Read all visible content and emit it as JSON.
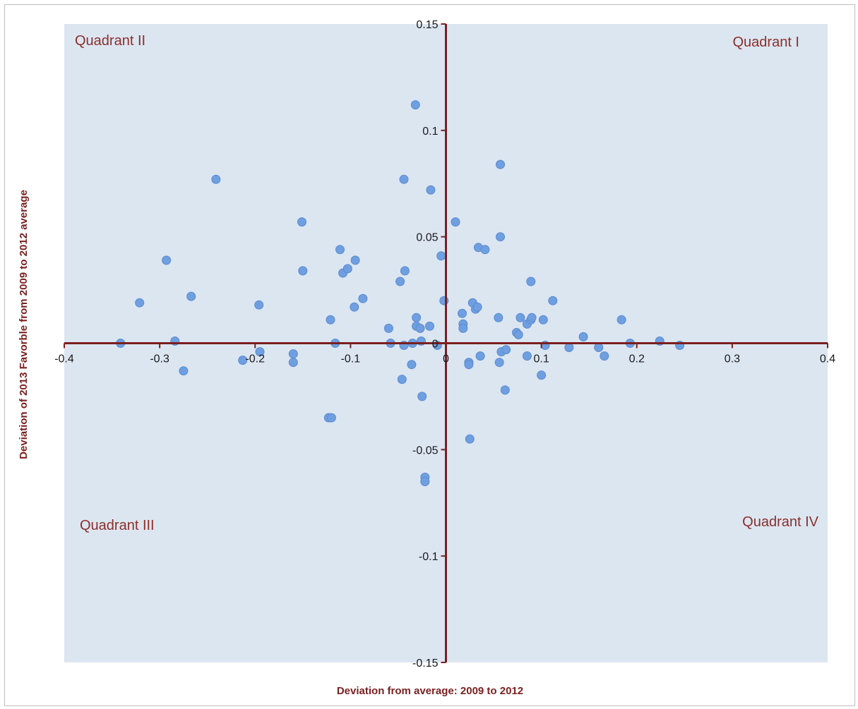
{
  "chart_data": {
    "type": "scatter",
    "xlabel": "Deviation from average: 2009 to 2012",
    "ylabel": "Deviation of 2013 Favorble from 2009 to 2012 average",
    "xlim": [
      -0.4,
      0.4
    ],
    "ylim": [
      -0.15,
      0.15
    ],
    "x_ticks": [
      "-0.4",
      "-0.3",
      "-0.2",
      "-0.1",
      "0",
      "0.1",
      "0.2",
      "0.3",
      "0.4"
    ],
    "y_ticks": [
      "0.15",
      "0.1",
      "0.05",
      "0",
      "-0.05",
      "-0.1",
      "-0.15"
    ],
    "grid": false,
    "legend": "none",
    "plot_background": "#dce6f1",
    "axis_color": "#7b1f1f",
    "marker_color": "#6f9fe0",
    "quadrant_labels": {
      "q1": "Quadrant I",
      "q2": "Quadrant II",
      "q3": "Quadrant III",
      "q4": "Quadrant IV"
    },
    "points": [
      [
        -0.341,
        0.0
      ],
      [
        -0.321,
        0.019
      ],
      [
        -0.293,
        0.039
      ],
      [
        -0.284,
        0.001
      ],
      [
        -0.275,
        -0.013
      ],
      [
        -0.267,
        0.022
      ],
      [
        -0.241,
        0.077
      ],
      [
        -0.213,
        -0.008
      ],
      [
        -0.196,
        0.018
      ],
      [
        -0.195,
        -0.004
      ],
      [
        -0.16,
        -0.005
      ],
      [
        -0.16,
        -0.009
      ],
      [
        -0.151,
        0.057
      ],
      [
        -0.15,
        0.034
      ],
      [
        -0.123,
        -0.035
      ],
      [
        -0.12,
        -0.035
      ],
      [
        -0.121,
        0.011
      ],
      [
        -0.116,
        0.0
      ],
      [
        -0.111,
        0.044
      ],
      [
        -0.108,
        0.033
      ],
      [
        -0.103,
        0.035
      ],
      [
        -0.096,
        0.017
      ],
      [
        -0.095,
        0.039
      ],
      [
        -0.087,
        0.021
      ],
      [
        -0.06,
        0.007
      ],
      [
        -0.058,
        0.0
      ],
      [
        -0.048,
        0.029
      ],
      [
        -0.046,
        -0.017
      ],
      [
        -0.044,
        0.077
      ],
      [
        -0.043,
        0.034
      ],
      [
        -0.044,
        -0.001
      ],
      [
        -0.036,
        -0.01
      ],
      [
        -0.035,
        0.0
      ],
      [
        -0.032,
        0.112
      ],
      [
        -0.031,
        0.012
      ],
      [
        -0.031,
        0.008
      ],
      [
        -0.027,
        0.007
      ],
      [
        -0.026,
        0.001
      ],
      [
        -0.025,
        -0.025
      ],
      [
        -0.022,
        -0.063
      ],
      [
        -0.022,
        -0.065
      ],
      [
        -0.017,
        0.008
      ],
      [
        -0.016,
        0.072
      ],
      [
        -0.009,
        -0.001
      ],
      [
        -0.005,
        0.041
      ],
      [
        -0.002,
        0.02
      ],
      [
        0.01,
        0.057
      ],
      [
        0.017,
        0.014
      ],
      [
        0.018,
        0.009
      ],
      [
        0.018,
        0.007
      ],
      [
        0.024,
        -0.009
      ],
      [
        0.024,
        -0.01
      ],
      [
        0.025,
        -0.045
      ],
      [
        0.028,
        0.019
      ],
      [
        0.031,
        0.016
      ],
      [
        0.033,
        0.017
      ],
      [
        0.034,
        0.045
      ],
      [
        0.036,
        -0.006
      ],
      [
        0.041,
        0.044
      ],
      [
        0.055,
        0.012
      ],
      [
        0.056,
        -0.009
      ],
      [
        0.057,
        0.084
      ],
      [
        0.057,
        0.05
      ],
      [
        0.058,
        -0.004
      ],
      [
        0.062,
        -0.022
      ],
      [
        0.063,
        -0.003
      ],
      [
        0.074,
        0.005
      ],
      [
        0.076,
        0.004
      ],
      [
        0.078,
        0.012
      ],
      [
        0.085,
        -0.006
      ],
      [
        0.085,
        0.009
      ],
      [
        0.089,
        0.011
      ],
      [
        0.09,
        0.012
      ],
      [
        0.089,
        0.029
      ],
      [
        0.1,
        -0.015
      ],
      [
        0.102,
        0.011
      ],
      [
        0.104,
        -0.001
      ],
      [
        0.112,
        0.02
      ],
      [
        0.129,
        -0.002
      ],
      [
        0.144,
        0.003
      ],
      [
        0.16,
        -0.002
      ],
      [
        0.166,
        -0.006
      ],
      [
        0.184,
        0.011
      ],
      [
        0.193,
        0.0
      ],
      [
        0.224,
        0.001
      ],
      [
        0.245,
        -0.001
      ]
    ]
  }
}
